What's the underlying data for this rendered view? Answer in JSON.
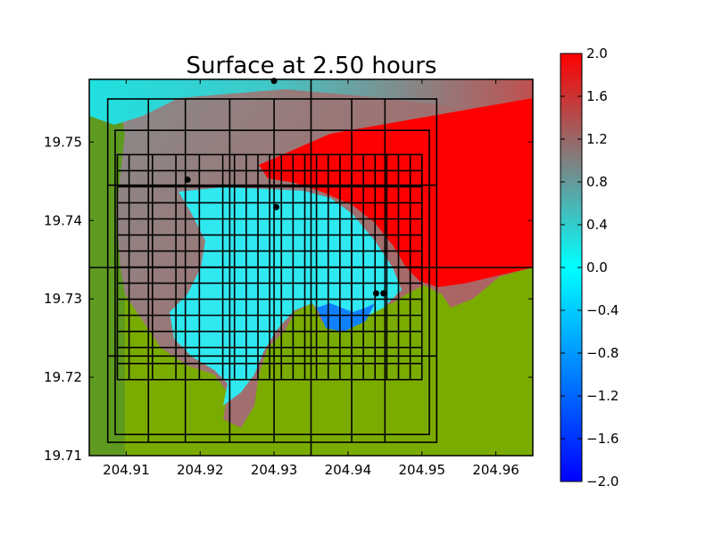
{
  "chart_data": {
    "type": "heatmap",
    "title": "Surface at 2.50 hours",
    "xlim": [
      204.905,
      204.965
    ],
    "ylim": [
      19.71,
      19.758
    ],
    "xticks": [
      "204.91",
      "204.92",
      "204.93",
      "204.94",
      "204.95",
      "204.96"
    ],
    "xtick_values": [
      204.91,
      204.92,
      204.93,
      204.94,
      204.95,
      204.96
    ],
    "yticks": [
      "19.71",
      "19.72",
      "19.73",
      "19.74",
      "19.75"
    ],
    "ytick_values": [
      19.71,
      19.72,
      19.73,
      19.74,
      19.75
    ],
    "colorbar": {
      "min": -2.0,
      "max": 2.0,
      "ticks": [
        "2.0",
        "1.6",
        "1.2",
        "0.8",
        "0.4",
        "0.0",
        "−0.4",
        "−0.8",
        "−1.2",
        "−1.6",
        "−2.0"
      ],
      "tick_values": [
        2.0,
        1.6,
        1.2,
        0.8,
        0.4,
        0.0,
        -0.4,
        -0.8,
        -1.2,
        -1.6,
        -2.0
      ],
      "colormap": [
        "#0000ff",
        "#00ffff",
        "#808080",
        "#ff0000"
      ]
    },
    "land_color": "#7aac00",
    "gauges": [
      {
        "x": 204.93,
        "y": 19.7578
      },
      {
        "x": 204.9183,
        "y": 19.7452
      },
      {
        "x": 204.9303,
        "y": 19.7417
      },
      {
        "x": 204.9438,
        "y": 19.7307
      },
      {
        "x": 204.9448,
        "y": 19.7307
      }
    ],
    "amr_patches": [
      {
        "x": [
          204.9075,
          204.952
        ],
        "y": [
          19.7117,
          19.7555
        ]
      },
      {
        "x": [
          204.9085,
          204.951
        ],
        "y": [
          19.7127,
          19.7515
        ]
      },
      {
        "x": [
          204.9088,
          204.95
        ],
        "y": [
          19.7197,
          19.7484
        ]
      }
    ]
  }
}
